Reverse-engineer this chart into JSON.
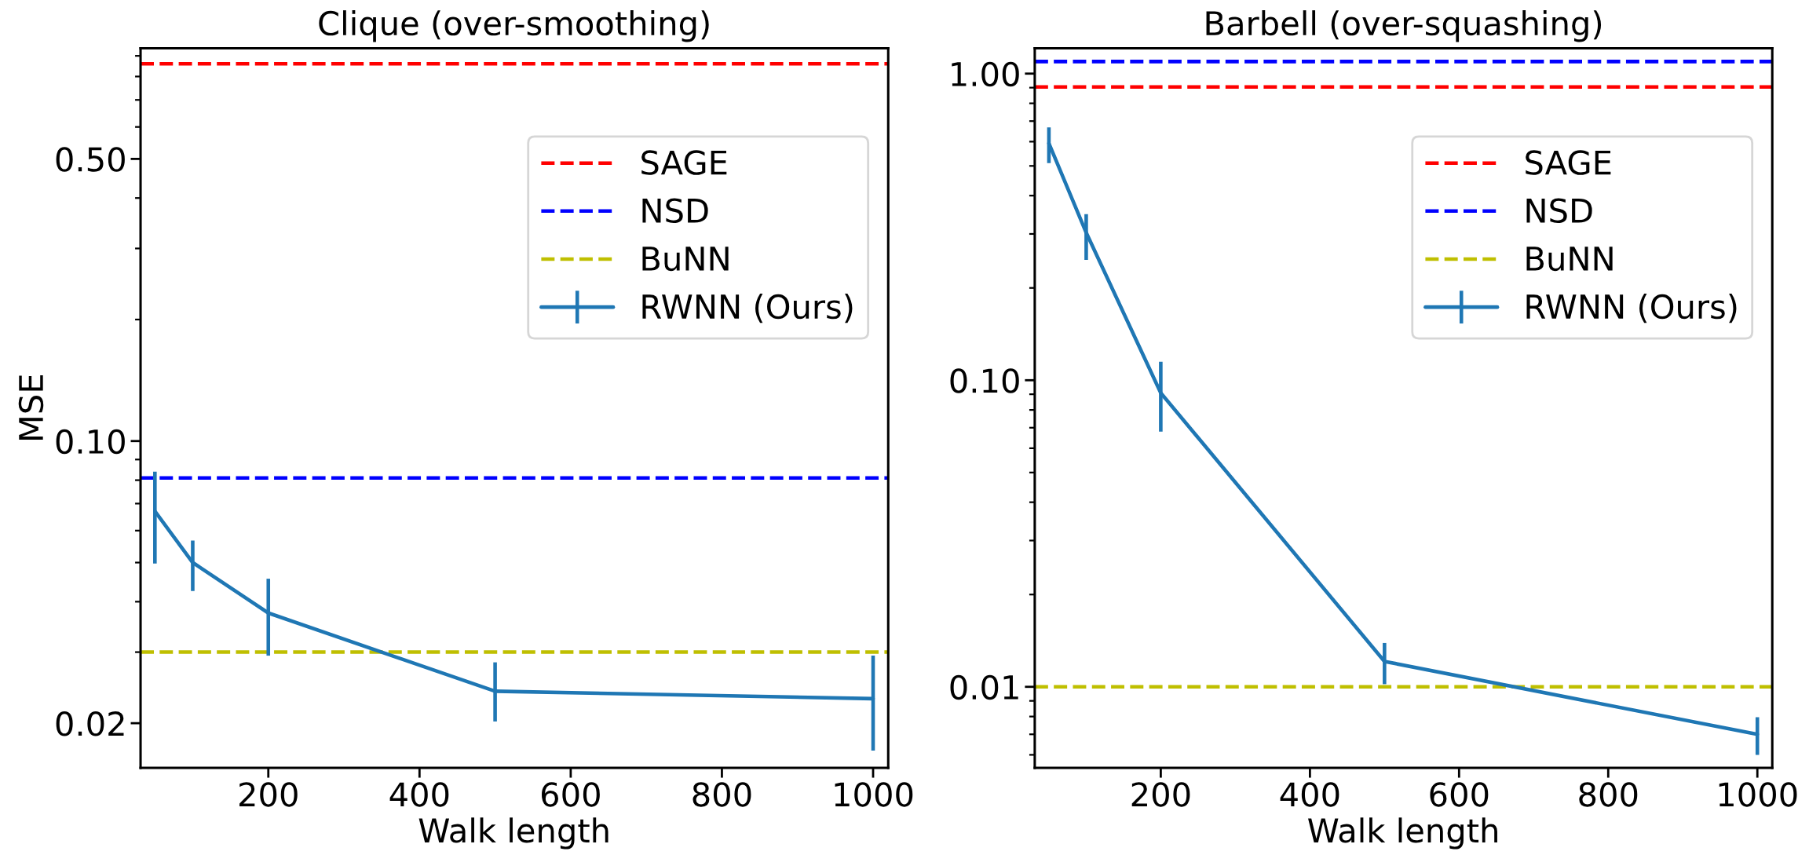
{
  "chart_data": [
    {
      "type": "line",
      "title": "Clique (over-smoothing)",
      "xlabel": "Walk length",
      "ylabel": "MSE",
      "log": "y",
      "legend": "top right",
      "grid": false,
      "marker": "none",
      "line_style": "solid",
      "xlim": [
        31,
        1020
      ],
      "xticks": [
        200,
        400,
        600,
        800,
        1000
      ],
      "ylim": [
        0.0155,
        0.94
      ],
      "yticks": [
        {
          "value": 0.02,
          "label": "0.02"
        },
        {
          "value": 0.1,
          "label": "0.10"
        },
        {
          "value": 0.5,
          "label": "0.50"
        }
      ],
      "ref_lines": [
        {
          "axis": "y",
          "value": 0.86,
          "label": "SAGE",
          "color": "#ff0000",
          "line_style": "dashed"
        },
        {
          "axis": "y",
          "value": 0.081,
          "label": "NSD",
          "color": "#0000ff",
          "line_style": "dashed"
        },
        {
          "axis": "y",
          "value": 0.03,
          "label": "BuNN",
          "color": "#bfbf00",
          "line_style": "dashed"
        }
      ],
      "series": [
        {
          "name": "RWNN (Ours)",
          "color": "#1f77b4",
          "x": [
            50,
            100,
            200,
            500,
            1000
          ],
          "values": [
            0.067,
            0.05,
            0.0375,
            0.024,
            0.023
          ],
          "errors": [
            [
              0.0497,
              0.084
            ],
            [
              0.0425,
              0.0567
            ],
            [
              0.0294,
              0.0456
            ],
            [
              0.0202,
              0.0283
            ],
            [
              0.0171,
              0.0294
            ]
          ]
        }
      ]
    },
    {
      "type": "line",
      "title": "Barbell (over-squashing)",
      "xlabel": "Walk length",
      "log": "y",
      "legend": "top right",
      "grid": false,
      "marker": "none",
      "line_style": "solid",
      "xlim": [
        31,
        1020
      ],
      "xticks": [
        200,
        400,
        600,
        800,
        1000
      ],
      "ylim": [
        0.00544,
        1.21
      ],
      "yticks": [
        {
          "value": 0.01,
          "label": "0.01"
        },
        {
          "value": 0.1,
          "label": "0.10"
        },
        {
          "value": 1,
          "label": "1.00"
        }
      ],
      "ref_lines": [
        {
          "axis": "y",
          "value": 0.905,
          "label": "SAGE",
          "color": "#ff0000",
          "line_style": "dashed"
        },
        {
          "axis": "y",
          "value": 1.095,
          "label": "NSD",
          "color": "#0000ff",
          "line_style": "dashed"
        },
        {
          "axis": "y",
          "value": 0.01,
          "label": "BuNN",
          "color": "#bfbf00",
          "line_style": "dashed"
        }
      ],
      "series": [
        {
          "name": "RWNN (Ours)",
          "color": "#1f77b4",
          "x": [
            50,
            100,
            200,
            500,
            1000
          ],
          "values": [
            0.592,
            0.303,
            0.0909,
            0.0121,
            0.007
          ],
          "errors": [
            [
              0.511,
              0.668
            ],
            [
              0.247,
              0.348
            ],
            [
              0.068,
              0.1148
            ],
            [
              0.0102,
              0.0139
            ],
            [
              0.006,
              0.00796
            ]
          ]
        }
      ]
    }
  ]
}
